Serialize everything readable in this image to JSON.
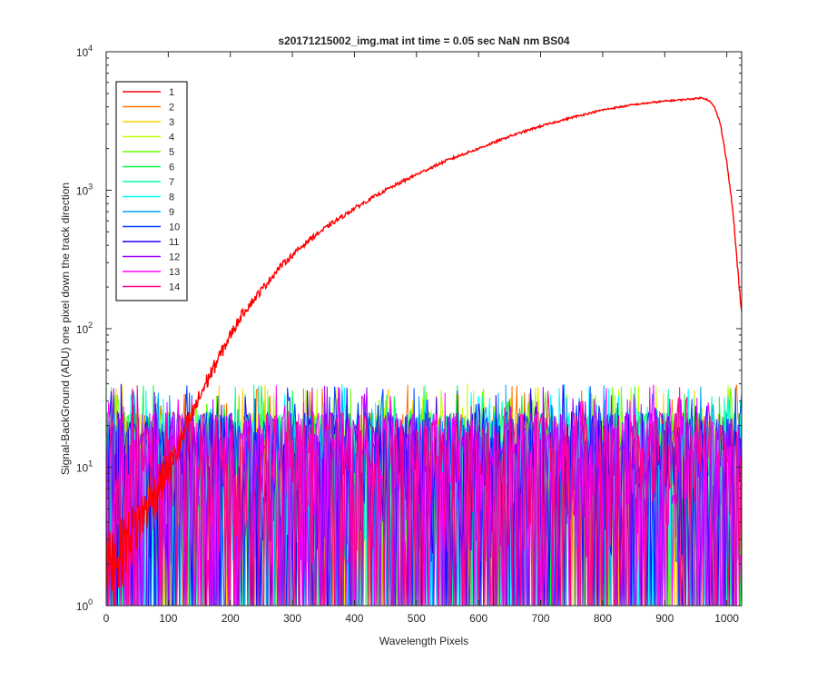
{
  "chart_data": {
    "type": "line",
    "title": "s20171215002_img.mat int time = 0.05 sec  NaN nm BS04",
    "xlabel": "Wavelength Pixels",
    "ylabel": "Signal-BackGround (ADU) one pixel down the track direction",
    "xlim": [
      0,
      1024
    ],
    "ylim": [
      1,
      10000
    ],
    "yscale": "log",
    "x_ticks": [
      "0",
      "100",
      "200",
      "300",
      "400",
      "500",
      "600",
      "700",
      "800",
      "900",
      "1000"
    ],
    "y_tick_base": "10",
    "y_tick_exponents": [
      "0",
      "1",
      "2",
      "3",
      "4"
    ],
    "grid": false,
    "legend_position": "top-left",
    "series": [
      {
        "name": "1",
        "color": "#ff0000",
        "kind": "signal",
        "x": [
          0,
          50,
          100,
          120,
          140,
          160,
          180,
          200,
          220,
          250,
          280,
          300,
          330,
          360,
          400,
          450,
          500,
          550,
          600,
          650,
          700,
          750,
          800,
          850,
          900,
          940,
          960,
          970,
          980,
          990,
          1000,
          1010,
          1020,
          1024
        ],
        "y": [
          2,
          4,
          10,
          15,
          25,
          40,
          60,
          90,
          130,
          190,
          280,
          340,
          450,
          560,
          740,
          1000,
          1300,
          1650,
          2000,
          2450,
          2900,
          3350,
          3800,
          4150,
          4400,
          4550,
          4650,
          4500,
          4000,
          3000,
          1600,
          700,
          200,
          130
        ]
      },
      {
        "name": "2",
        "color": "#ff7000",
        "kind": "noise"
      },
      {
        "name": "3",
        "color": "#ffd000",
        "kind": "noise"
      },
      {
        "name": "4",
        "color": "#c0ff00",
        "kind": "noise"
      },
      {
        "name": "5",
        "color": "#60ff00",
        "kind": "noise"
      },
      {
        "name": "6",
        "color": "#00ff40",
        "kind": "noise"
      },
      {
        "name": "7",
        "color": "#00ffa0",
        "kind": "noise"
      },
      {
        "name": "8",
        "color": "#00ffff",
        "kind": "noise"
      },
      {
        "name": "9",
        "color": "#00a0ff",
        "kind": "noise"
      },
      {
        "name": "10",
        "color": "#0040ff",
        "kind": "noise"
      },
      {
        "name": "11",
        "color": "#2000ff",
        "kind": "noise"
      },
      {
        "name": "12",
        "color": "#a000ff",
        "kind": "noise"
      },
      {
        "name": "13",
        "color": "#ff00ff",
        "kind": "noise"
      },
      {
        "name": "14",
        "color": "#ff0080",
        "kind": "noise"
      }
    ],
    "noise_band": {
      "floor": 1,
      "typical_high": 25,
      "max_peak": 40
    }
  }
}
